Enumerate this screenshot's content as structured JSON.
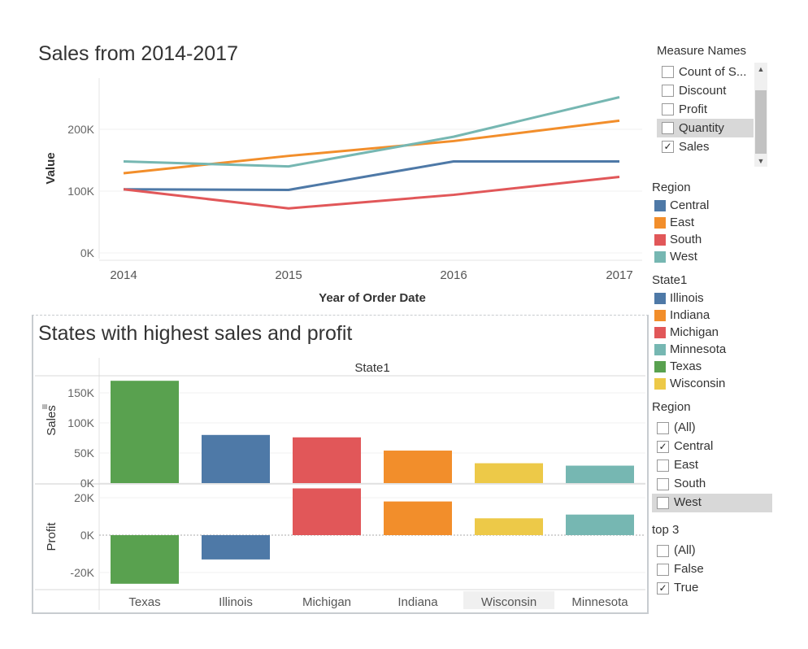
{
  "line_chart": {
    "title": "Sales from 2014-2017",
    "xlabel": "Year of Order Date",
    "ylabel": "Value"
  },
  "bar_chart": {
    "title": "States with highest sales and profit",
    "column_header": "State1",
    "sales_label": "Sales",
    "profit_label": "Profit",
    "sort_icon": "sort-descending-icon"
  },
  "measure_names": {
    "title": "Measure Names",
    "items": [
      {
        "label": "Count of S...",
        "checked": false
      },
      {
        "label": "Discount",
        "checked": false
      },
      {
        "label": "Profit",
        "checked": false
      },
      {
        "label": "Quantity",
        "checked": false
      },
      {
        "label": "Sales",
        "checked": true
      }
    ],
    "scroll_up": "▲",
    "scroll_down": "▼"
  },
  "region_legend": {
    "title": "Region",
    "items": [
      {
        "label": "Central",
        "color": "#4e79a7"
      },
      {
        "label": "East",
        "color": "#f28e2b"
      },
      {
        "label": "South",
        "color": "#e15759"
      },
      {
        "label": "West",
        "color": "#76b7b2"
      }
    ]
  },
  "state_legend": {
    "title": "State1",
    "items": [
      {
        "label": "Illinois",
        "color": "#4e79a7"
      },
      {
        "label": "Indiana",
        "color": "#f28e2b"
      },
      {
        "label": "Michigan",
        "color": "#e15759"
      },
      {
        "label": "Minnesota",
        "color": "#76b7b2"
      },
      {
        "label": "Texas",
        "color": "#59a14f"
      },
      {
        "label": "Wisconsin",
        "color": "#edc948"
      }
    ]
  },
  "region_filter": {
    "title": "Region",
    "items": [
      {
        "label": "(All)",
        "checked": false
      },
      {
        "label": "Central",
        "checked": true
      },
      {
        "label": "East",
        "checked": false
      },
      {
        "label": "South",
        "checked": false
      },
      {
        "label": "West",
        "checked": false
      }
    ]
  },
  "top3_filter": {
    "title": "top 3",
    "items": [
      {
        "label": "(All)",
        "checked": false
      },
      {
        "label": "False",
        "checked": false
      },
      {
        "label": "True",
        "checked": true
      }
    ]
  },
  "chart_data": [
    {
      "type": "line",
      "title": "Sales from 2014-2017",
      "xlabel": "Year of Order Date",
      "ylabel": "Value",
      "x": [
        "2014",
        "2015",
        "2016",
        "2017"
      ],
      "yticks": [
        "0K",
        "100K",
        "200K"
      ],
      "ylim": [
        0,
        265000
      ],
      "series": [
        {
          "name": "Central",
          "color": "#4e79a7",
          "values": [
            103000,
            102000,
            148000,
            148000
          ]
        },
        {
          "name": "East",
          "color": "#f28e2b",
          "values": [
            129000,
            157000,
            181000,
            214000
          ]
        },
        {
          "name": "South",
          "color": "#e15759",
          "values": [
            103000,
            72000,
            94000,
            123000
          ]
        },
        {
          "name": "West",
          "color": "#76b7b2",
          "values": [
            148000,
            140000,
            188000,
            252000
          ]
        }
      ]
    },
    {
      "type": "bar",
      "title": "States with highest sales and profit",
      "column_header": "State1",
      "categories": [
        "Texas",
        "Illinois",
        "Michigan",
        "Indiana",
        "Wisconsin",
        "Minnesota"
      ],
      "colors": [
        "#59a14f",
        "#4e79a7",
        "#e15759",
        "#f28e2b",
        "#edc948",
        "#76b7b2"
      ],
      "highlighted_category": "Wisconsin",
      "series": [
        {
          "name": "Sales",
          "values": [
            170000,
            80000,
            76000,
            54000,
            33000,
            29000
          ],
          "ylim": [
            0,
            180000
          ],
          "yticks": [
            "0K",
            "50K",
            "100K",
            "150K"
          ]
        },
        {
          "name": "Profit",
          "values": [
            -26000,
            -13000,
            25000,
            18000,
            9000,
            11000
          ],
          "ylim": [
            -28000,
            26000
          ],
          "yticks": [
            "-20K",
            "0K",
            "20K"
          ]
        }
      ]
    }
  ]
}
